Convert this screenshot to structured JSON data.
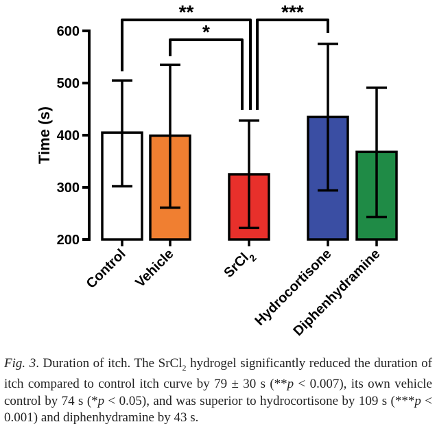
{
  "chart_data": {
    "type": "bar",
    "ylabel": "Time (s)",
    "ylim": [
      200,
      600
    ],
    "yticks": [
      "200",
      "300",
      "400",
      "500",
      "600"
    ],
    "grid": false,
    "categories": [
      "Control",
      "Vehicle",
      "SrCl",
      "Hydrocortisone",
      "Diphenhydramine"
    ],
    "category_subscripts": [
      "",
      "",
      "2",
      "",
      ""
    ],
    "values": [
      405,
      399,
      325,
      435,
      368
    ],
    "error_low": [
      302,
      261,
      222,
      294,
      243
    ],
    "error_high": [
      505,
      535,
      428,
      575,
      491
    ],
    "colors": [
      "#ffffff",
      "#f07f31",
      "#e8302b",
      "#3a4ea3",
      "#1f8b46"
    ],
    "significance": [
      {
        "from": 0,
        "to": 2,
        "label": "**",
        "level": 1
      },
      {
        "from": 1,
        "to": 2,
        "label": "*",
        "level": 2
      },
      {
        "from": 2,
        "to": 3,
        "label": "***",
        "level": 1
      }
    ]
  },
  "caption": {
    "label": "Fig. 3",
    "part1": ". Duration of itch. The SrCl",
    "sub": "2",
    "part2": " hydrogel significantly reduced the duration of itch compared to control itch curve by 79 ± 30 s (**",
    "p1": "p",
    "part3": " < 0.007), its own vehicle control by 74 s (*",
    "p2": "p",
    "part4": " < 0.05), and was superior to hydrocortisone by 109 s (***",
    "p3": "p",
    "part5": " < 0.001) and diphenhydramine by 43 s."
  }
}
